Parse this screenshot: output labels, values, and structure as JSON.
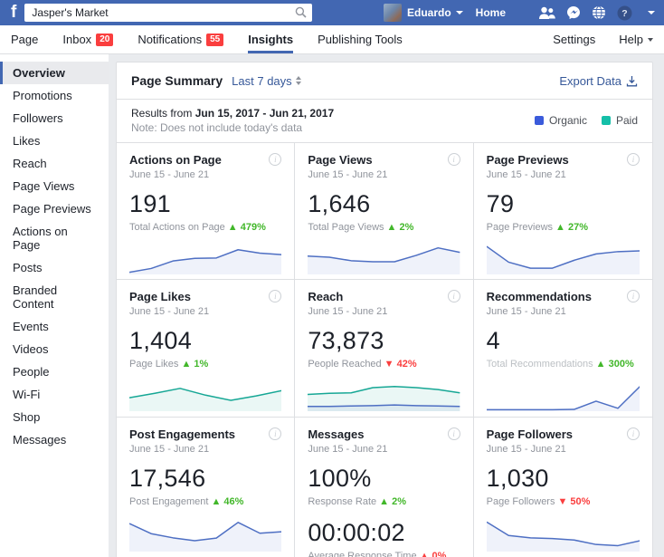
{
  "topbar": {
    "search": {
      "value": "Jasper's Market"
    },
    "user_name": "Eduardo",
    "home_label": "Home"
  },
  "nav": {
    "items": [
      {
        "label": "Page"
      },
      {
        "label": "Inbox",
        "badge": "20"
      },
      {
        "label": "Notifications",
        "badge": "55"
      },
      {
        "label": "Insights"
      },
      {
        "label": "Publishing Tools"
      }
    ],
    "settings_label": "Settings",
    "help_label": "Help"
  },
  "sidebar": {
    "items": [
      "Overview",
      "Promotions",
      "Followers",
      "Likes",
      "Reach",
      "Page Views",
      "Page Previews",
      "Actions on Page",
      "Posts",
      "Branded Content",
      "Events",
      "Videos",
      "People",
      "Wi-Fi",
      "Shop",
      "Messages"
    ],
    "active": "Overview"
  },
  "summary": {
    "title": "Page Summary",
    "range_label": "Last 7 days",
    "export_label": "Export Data",
    "results_prefix": "Results from",
    "date_range": "Jun 15, 2017 - Jun 21, 2017",
    "note": "Note: Does not include today's data",
    "legend": [
      {
        "label": "Organic",
        "color": "#3b5bdb"
      },
      {
        "label": "Paid",
        "color": "#15bfa8"
      }
    ]
  },
  "colors": {
    "topbar_blue": "#4267b2",
    "badge_red": "#fa3e3e",
    "trend_up_green": "#42b72a",
    "trend_down_red": "#fa3e3e",
    "organic_line": "#4e6fc3",
    "paid_line": "#16a795"
  },
  "cards": [
    {
      "title": "Actions on Page",
      "date": "June 15 - June 21",
      "value": "191",
      "label": "Total Actions on Page",
      "trend": {
        "arrow": "▲",
        "value": "479%",
        "color": "#42b72a"
      },
      "chart": {
        "type": "line",
        "x_range": "June 15 - June 21",
        "series": [
          {
            "name": "organic",
            "color": "#4e6fc3",
            "points": [
              3,
              13,
              33,
              40,
              41,
              63,
              54,
              50
            ]
          }
        ]
      }
    },
    {
      "title": "Page Views",
      "date": "June 15 - June 21",
      "value": "1,646",
      "label": "Total Page Views",
      "trend": {
        "arrow": "▲",
        "value": "2%",
        "color": "#42b72a"
      },
      "chart": {
        "type": "line",
        "x_range": "June 15 - June 21",
        "series": [
          {
            "name": "organic",
            "color": "#4e6fc3",
            "points": [
              46,
              43,
              34,
              31,
              31,
              48,
              68,
              56
            ]
          }
        ]
      }
    },
    {
      "title": "Page Previews",
      "date": "June 15 - June 21",
      "value": "79",
      "label": "Page Previews",
      "trend": {
        "arrow": "▲",
        "value": "27%",
        "color": "#42b72a"
      },
      "chart": {
        "type": "line",
        "x_range": "June 15 - June 21",
        "series": [
          {
            "name": "organic",
            "color": "#4e6fc3",
            "points": [
              72,
              30,
              14,
              14,
              35,
              52,
              58,
              60
            ]
          }
        ]
      }
    },
    {
      "title": "Page Likes",
      "date": "June 15 - June 21",
      "value": "1,404",
      "label": "Page Likes",
      "trend": {
        "arrow": "▲",
        "value": "1%",
        "color": "#42b72a"
      },
      "chart": {
        "type": "line",
        "x_range": "June 15 - June 21",
        "series": [
          {
            "name": "paid",
            "color": "#16a795",
            "points": [
              33,
              45,
              58,
              40,
              26,
              38,
              52
            ]
          }
        ]
      }
    },
    {
      "title": "Reach",
      "date": "June 15 - June 21",
      "value": "73,873",
      "label": "People Reached",
      "trend": {
        "arrow": "▼",
        "value": "42%",
        "color": "#fa3e3e"
      },
      "chart": {
        "type": "line",
        "x_range": "June 15 - June 21",
        "series": [
          {
            "name": "paid",
            "color": "#16a795",
            "points": [
              42,
              45,
              46,
              60,
              63,
              60,
              55,
              46
            ]
          },
          {
            "name": "organic",
            "color": "#4e6fc3",
            "points": [
              10,
              10,
              11,
              12,
              14,
              12,
              11,
              10
            ]
          }
        ]
      }
    },
    {
      "title": "Recommendations",
      "date": "June 15 - June 21",
      "value": "4",
      "label": "Total Recommendations",
      "trend": {
        "arrow": "▲",
        "value": "300%",
        "color": "#42b72a"
      },
      "chart": {
        "type": "line",
        "x_range": "June 15 - June 21",
        "series": [
          {
            "name": "organic",
            "color": "#4e6fc3",
            "points": [
              1,
              1,
              1,
              1,
              2,
              24,
              5,
              63
            ]
          }
        ]
      }
    },
    {
      "title": "Post Engagements",
      "date": "June 15 - June 21",
      "value": "17,546",
      "label": "Post Engagement",
      "trend": {
        "arrow": "▲",
        "value": "46%",
        "color": "#42b72a"
      },
      "chart": {
        "type": "line",
        "x_range": "June 15 - June 21",
        "series": [
          {
            "name": "organic",
            "color": "#4e6fc3",
            "points": [
              72,
              45,
              34,
              26,
              33,
              75,
              46,
              50
            ]
          }
        ]
      }
    },
    {
      "title": "Messages",
      "date": "June 15 - June 21",
      "value": "100%",
      "label": "Response Rate",
      "trend": {
        "arrow": "▲",
        "value": "2%",
        "color": "#42b72a"
      },
      "value2": "00:00:02",
      "label2": "Average Response Time",
      "trend2": {
        "arrow": "▲",
        "value": "0%",
        "color": "#fa3e3e"
      }
    },
    {
      "title": "Page Followers",
      "date": "June 15 - June 21",
      "value": "1,030",
      "label": "Page Followers",
      "trend": {
        "arrow": "▼",
        "value": "50%",
        "color": "#fa3e3e"
      },
      "chart": {
        "type": "line",
        "x_range": "June 15 - June 21",
        "series": [
          {
            "name": "organic",
            "color": "#4e6fc3",
            "points": [
              76,
              40,
              34,
              32,
              28,
              16,
              13,
              26
            ]
          }
        ]
      }
    }
  ]
}
